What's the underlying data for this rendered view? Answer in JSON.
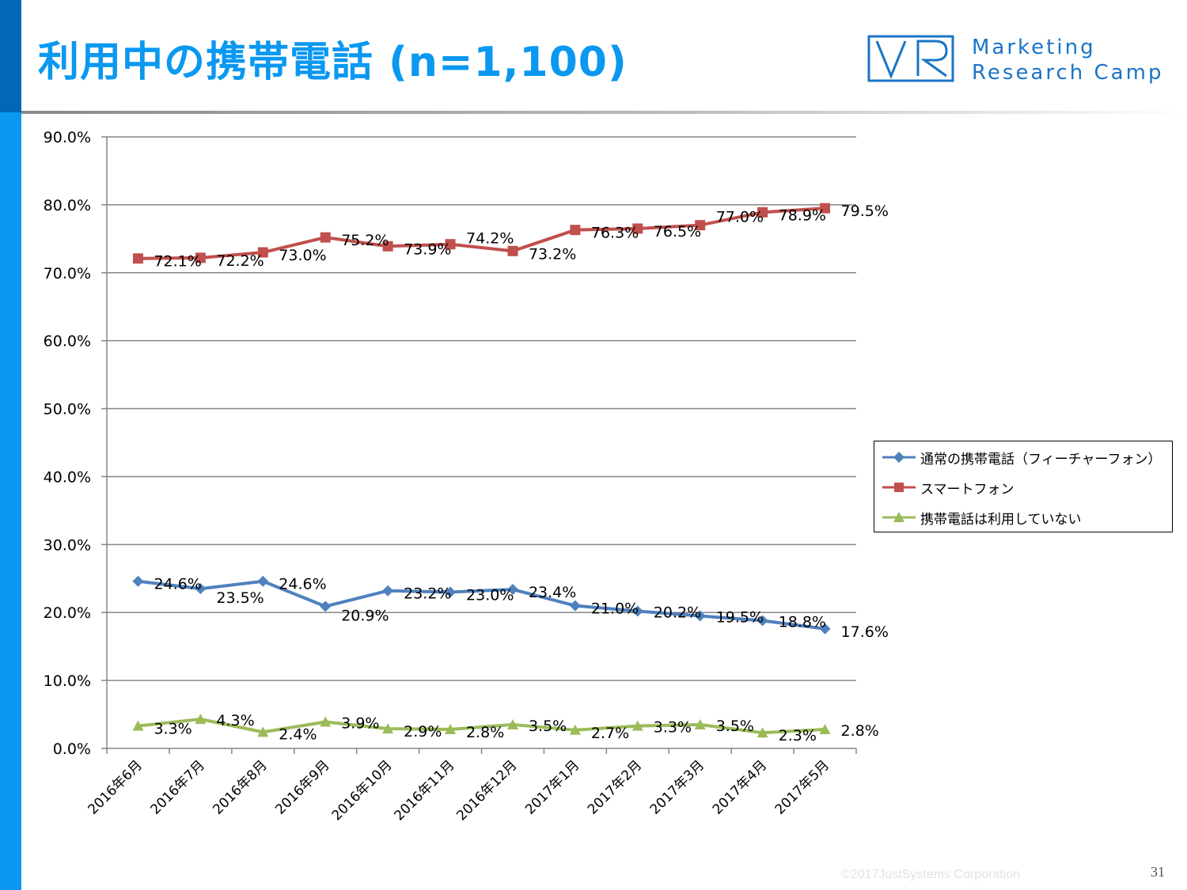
{
  "header": {
    "title": "利用中の携帯電話 (n=1,100)",
    "brand_line1": "Marketing",
    "brand_line2": "Research Camp"
  },
  "colors": {
    "accent": "#0a98f0",
    "accent_dark": "#0068b7",
    "series_feature_phone": "#4f81bd",
    "series_smartphone": "#c0504d",
    "series_none": "#9bbb59",
    "brand": "#1a74c6"
  },
  "footer": {
    "copyright": "©2017JustSystems Corporation",
    "page_number": "31"
  },
  "chart_data": {
    "type": "line",
    "title": "",
    "xlabel": "",
    "ylabel": "",
    "ylim": [
      0,
      90
    ],
    "ytick_step": 10,
    "ytick_labels": [
      "0.0%",
      "10.0%",
      "20.0%",
      "30.0%",
      "40.0%",
      "50.0%",
      "60.0%",
      "70.0%",
      "80.0%",
      "90.0%"
    ],
    "grid": true,
    "legend_position": "right",
    "categories": [
      "2016年6月",
      "2016年7月",
      "2016年8月",
      "2016年9月",
      "2016年10月",
      "2016年11月",
      "2016年12月",
      "2017年1月",
      "2017年2月",
      "2017年3月",
      "2017年4月",
      "2017年5月"
    ],
    "series": [
      {
        "name": "通常の携帯電話（フィーチャーフォン）",
        "marker": "diamond",
        "color": "#4f81bd",
        "values": [
          24.6,
          23.5,
          24.6,
          20.9,
          23.2,
          23.0,
          23.4,
          21.0,
          20.2,
          19.5,
          18.8,
          17.6
        ],
        "labels": [
          "24.6%",
          "23.5%",
          "24.6%",
          "20.9%",
          "23.2%",
          "23.0%",
          "23.4%",
          "21.0%",
          "20.2%",
          "19.5%",
          "18.8%",
          "17.6%"
        ]
      },
      {
        "name": "スマートフォン",
        "marker": "square",
        "color": "#c0504d",
        "values": [
          72.1,
          72.2,
          73.0,
          75.2,
          73.9,
          74.2,
          73.2,
          76.3,
          76.5,
          77.0,
          78.9,
          79.5
        ],
        "labels": [
          "72.1%",
          "72.2%",
          "73.0%",
          "75.2%",
          "73.9%",
          "74.2%",
          "73.2%",
          "76.3%",
          "76.5%",
          "77.0%",
          "78.9%",
          "79.5%"
        ]
      },
      {
        "name": "携帯電話は利用していない",
        "marker": "triangle",
        "color": "#9bbb59",
        "values": [
          3.3,
          4.3,
          2.4,
          3.9,
          2.9,
          2.8,
          3.5,
          2.7,
          3.3,
          3.5,
          2.3,
          2.8
        ],
        "labels": [
          "3.3%",
          "4.3%",
          "2.4%",
          "3.9%",
          "2.9%",
          "2.8%",
          "3.5%",
          "2.7%",
          "3.3%",
          "3.5%",
          "2.3%",
          "2.8%"
        ]
      }
    ]
  }
}
